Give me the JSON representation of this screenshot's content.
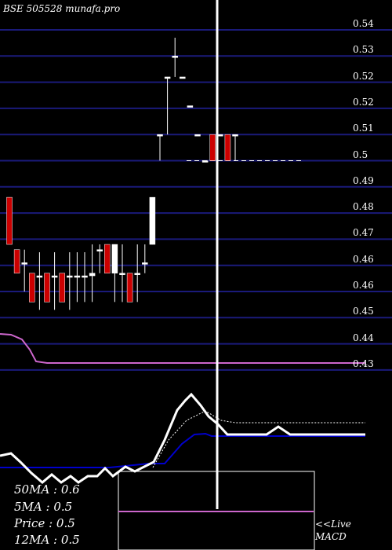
{
  "title": "BSE 505528 munafa.pro",
  "chart_data": {
    "type": "candlestick",
    "title": "BSE 505528 munafa.pro",
    "ylim": [
      0.425,
      0.545
    ],
    "y_ticks": [
      "0.54",
      "0.53",
      "0.52",
      "0.52",
      "0.51",
      "0.5",
      "0.49",
      "0.48",
      "0.47",
      "0.46",
      "0.46",
      "0.45",
      "0.44",
      "0.43"
    ],
    "y_tick_values": [
      0.54,
      0.53,
      0.52,
      0.52,
      0.51,
      0.5,
      0.49,
      0.48,
      0.47,
      0.46,
      0.46,
      0.45,
      0.44,
      0.43
    ],
    "candles": [
      {
        "o": 0.476,
        "h": 0.476,
        "l": 0.458,
        "c": 0.458,
        "color": "red"
      },
      {
        "o": 0.456,
        "h": 0.456,
        "l": 0.447,
        "c": 0.447,
        "color": "red"
      },
      {
        "o": 0.451,
        "h": 0.456,
        "l": 0.44,
        "c": 0.451,
        "color": "white"
      },
      {
        "o": 0.447,
        "h": 0.447,
        "l": 0.436,
        "c": 0.436,
        "color": "red"
      },
      {
        "o": 0.446,
        "h": 0.455,
        "l": 0.433,
        "c": 0.446,
        "color": "white"
      },
      {
        "o": 0.447,
        "h": 0.447,
        "l": 0.436,
        "c": 0.436,
        "color": "red"
      },
      {
        "o": 0.446,
        "h": 0.455,
        "l": 0.433,
        "c": 0.446,
        "color": "white"
      },
      {
        "o": 0.447,
        "h": 0.447,
        "l": 0.436,
        "c": 0.436,
        "color": "red"
      },
      {
        "o": 0.446,
        "h": 0.455,
        "l": 0.433,
        "c": 0.446,
        "color": "white"
      },
      {
        "o": 0.446,
        "h": 0.455,
        "l": 0.436,
        "c": 0.446,
        "color": "white"
      },
      {
        "o": 0.446,
        "h": 0.455,
        "l": 0.436,
        "c": 0.446,
        "color": "white"
      },
      {
        "o": 0.446,
        "h": 0.458,
        "l": 0.436,
        "c": 0.447,
        "color": "white"
      },
      {
        "o": 0.456,
        "h": 0.458,
        "l": 0.447,
        "c": 0.456,
        "color": "white"
      },
      {
        "o": 0.458,
        "h": 0.458,
        "l": 0.447,
        "c": 0.447,
        "color": "red"
      },
      {
        "o": 0.447,
        "h": 0.458,
        "l": 0.436,
        "c": 0.458,
        "color": "white"
      },
      {
        "o": 0.447,
        "h": 0.458,
        "l": 0.436,
        "c": 0.447,
        "color": "white"
      },
      {
        "o": 0.447,
        "h": 0.447,
        "l": 0.436,
        "c": 0.436,
        "color": "red"
      },
      {
        "o": 0.447,
        "h": 0.458,
        "l": 0.436,
        "c": 0.447,
        "color": "white"
      },
      {
        "o": 0.451,
        "h": 0.458,
        "l": 0.447,
        "c": 0.451,
        "color": "white"
      },
      {
        "o": 0.458,
        "h": 0.476,
        "l": 0.458,
        "c": 0.476,
        "color": "white"
      },
      {
        "o": 0.5,
        "h": 0.5,
        "l": 0.49,
        "c": 0.5,
        "color": "white"
      },
      {
        "o": 0.522,
        "h": 0.522,
        "l": 0.5,
        "c": 0.522,
        "color": "white"
      },
      {
        "o": 0.53,
        "h": 0.537,
        "l": 0.522,
        "c": 0.53,
        "color": "white"
      },
      {
        "o": 0.522,
        "h": 0.522,
        "l": 0.522,
        "c": 0.522,
        "color": "white"
      },
      {
        "o": 0.511,
        "h": 0.511,
        "l": 0.511,
        "c": 0.511,
        "color": "white"
      },
      {
        "o": 0.5,
        "h": 0.5,
        "l": 0.5,
        "c": 0.5,
        "color": "white"
      },
      {
        "o": 0.49,
        "h": 0.49,
        "l": 0.49,
        "c": 0.49,
        "color": "white"
      },
      {
        "o": 0.5,
        "h": 0.5,
        "l": 0.49,
        "c": 0.49,
        "color": "red"
      },
      {
        "o": 0.5,
        "h": 0.5,
        "l": 0.5,
        "c": 0.5,
        "color": "white"
      },
      {
        "o": 0.5,
        "h": 0.5,
        "l": 0.49,
        "c": 0.49,
        "color": "red"
      },
      {
        "o": 0.5,
        "h": 0.5,
        "l": 0.49,
        "c": 0.5,
        "color": "white"
      }
    ],
    "ma_line": [
      0.433,
      0.433,
      0.432,
      0.428,
      0.425,
      0.425
    ],
    "ref_level": 0.49
  },
  "stats": {
    "ma50": "50MA : 0.6",
    "ma5": "5MA : 0.5",
    "price": "Price   : 0.5",
    "ma12": "12MA : 0.5"
  },
  "macd_label_1": "<<Live",
  "macd_label_2": "MACD",
  "colors": {
    "background": "#000000",
    "gridline": "#1a1a7a",
    "bull": "#ffffff",
    "bear": "#cc0000",
    "ma": "#cc66cc",
    "macd_signal": "#0000cc"
  }
}
